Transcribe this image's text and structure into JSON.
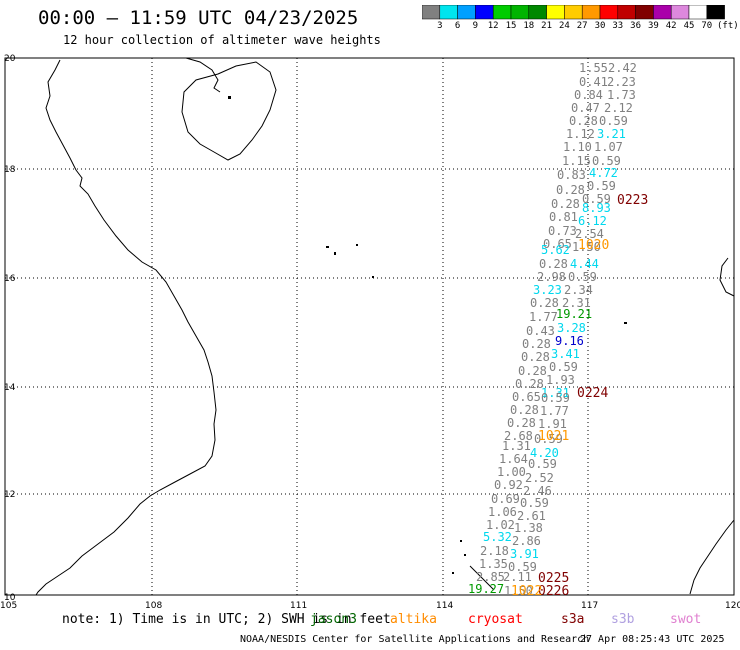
{
  "header": {
    "title": "00:00 – 11:59 UTC 04/23/2025",
    "subtitle": "12 hour collection of altimeter wave heights"
  },
  "scale": {
    "colors": [
      "#808080",
      "#00e5ee",
      "#00a0ff",
      "#0000ff",
      "#00cc00",
      "#00b400",
      "#008800",
      "#ffff00",
      "#ffcc00",
      "#ff9900",
      "#ff0000",
      "#c00000",
      "#800000",
      "#aa00aa",
      "#dd88dd",
      "#ffffff",
      "#000000"
    ],
    "labels": [
      "3",
      "6",
      "9",
      "12",
      "15",
      "18",
      "21",
      "24",
      "27",
      "30",
      "33",
      "36",
      "39",
      "42",
      "45",
      "70"
    ],
    "unit": "(ft)"
  },
  "axes": {
    "lat_labels": [
      "20",
      "18",
      "16",
      "14",
      "12",
      "10"
    ],
    "lon_labels": [
      "105",
      "108",
      "111",
      "114",
      "117",
      "120"
    ]
  },
  "track": {
    "values": [
      {
        "text": "1.55",
        "c": "gray"
      },
      {
        "text": "2.42",
        "c": "gray"
      },
      {
        "text": "0.41",
        "c": "gray"
      },
      {
        "text": "2.23",
        "c": "gray"
      },
      {
        "text": "0.84",
        "c": "gray"
      },
      {
        "text": "1.73",
        "c": "gray"
      },
      {
        "text": "0.47",
        "c": "gray"
      },
      {
        "text": "2.12",
        "c": "gray"
      },
      {
        "text": "0.28",
        "c": "gray"
      },
      {
        "text": "0.59",
        "c": "gray"
      },
      {
        "text": "1.12",
        "c": "gray"
      },
      {
        "text": "3.21",
        "c": "cyan"
      },
      {
        "text": "1.10",
        "c": "gray"
      },
      {
        "text": "1.07",
        "c": "gray"
      },
      {
        "text": "1.15",
        "c": "gray"
      },
      {
        "text": "0.59",
        "c": "gray"
      },
      {
        "text": "0.83",
        "c": "gray"
      },
      {
        "text": "4.72",
        "c": "cyan"
      },
      {
        "text": "0.28",
        "c": "gray"
      },
      {
        "text": "0.59",
        "c": "gray"
      },
      {
        "text": "0.28",
        "c": "gray"
      },
      {
        "text": "8.93",
        "c": "cyan"
      },
      {
        "text": "0.59",
        "c": "gray"
      },
      {
        "text": "0.81",
        "c": "gray"
      },
      {
        "text": "6.12",
        "c": "cyan"
      },
      {
        "text": "0.73",
        "c": "gray"
      },
      {
        "text": "2.54",
        "c": "gray"
      },
      {
        "text": "0.65",
        "c": "gray"
      },
      {
        "text": "1.50",
        "c": "gray"
      },
      {
        "text": "5.62",
        "c": "cyan"
      },
      {
        "text": "0.28",
        "c": "gray"
      },
      {
        "text": "4.44",
        "c": "cyan"
      },
      {
        "text": "2.98",
        "c": "gray"
      },
      {
        "text": "0.59",
        "c": "gray"
      },
      {
        "text": "3.23",
        "c": "cyan"
      },
      {
        "text": "2.34",
        "c": "gray"
      },
      {
        "text": "0.28",
        "c": "gray"
      },
      {
        "text": "2.31",
        "c": "gray"
      },
      {
        "text": "1.77",
        "c": "gray"
      },
      {
        "text": "19.21",
        "c": "green"
      },
      {
        "text": "0.43",
        "c": "gray"
      },
      {
        "text": "3.28",
        "c": "cyan"
      },
      {
        "text": "0.28",
        "c": "gray"
      },
      {
        "text": "9.16",
        "c": "blue"
      },
      {
        "text": "0.28",
        "c": "gray"
      },
      {
        "text": "3.41",
        "c": "cyan"
      },
      {
        "text": "0.28",
        "c": "gray"
      },
      {
        "text": "0.59",
        "c": "gray"
      },
      {
        "text": "0.28",
        "c": "gray"
      },
      {
        "text": "1.93",
        "c": "gray"
      },
      {
        "text": "1.31",
        "c": "cyan"
      },
      {
        "text": "0.65",
        "c": "gray"
      },
      {
        "text": "0.59",
        "c": "gray"
      },
      {
        "text": "0.28",
        "c": "gray"
      },
      {
        "text": "1.77",
        "c": "gray"
      },
      {
        "text": "0.28",
        "c": "gray"
      },
      {
        "text": "1.91",
        "c": "gray"
      },
      {
        "text": "2.68",
        "c": "gray"
      },
      {
        "text": "0.59",
        "c": "gray"
      },
      {
        "text": "1.31",
        "c": "gray"
      },
      {
        "text": "4.20",
        "c": "cyan"
      },
      {
        "text": "1.64",
        "c": "gray"
      },
      {
        "text": "0.59",
        "c": "gray"
      },
      {
        "text": "1.00",
        "c": "gray"
      },
      {
        "text": "2.52",
        "c": "gray"
      },
      {
        "text": "0.92",
        "c": "gray"
      },
      {
        "text": "2.46",
        "c": "gray"
      },
      {
        "text": "0.69",
        "c": "gray"
      },
      {
        "text": "0.59",
        "c": "gray"
      },
      {
        "text": "1.06",
        "c": "gray"
      },
      {
        "text": "2.61",
        "c": "gray"
      },
      {
        "text": "1.02",
        "c": "gray"
      },
      {
        "text": "1.38",
        "c": "gray"
      },
      {
        "text": "5.32",
        "c": "cyan"
      },
      {
        "text": "2.86",
        "c": "gray"
      },
      {
        "text": "2.18",
        "c": "gray"
      },
      {
        "text": "3.91",
        "c": "cyan"
      },
      {
        "text": "1.35",
        "c": "gray"
      },
      {
        "text": "0.59",
        "c": "gray"
      },
      {
        "text": "2.85",
        "c": "gray"
      },
      {
        "text": "2.11",
        "c": "gray"
      },
      {
        "text": "19.27",
        "c": "green"
      },
      {
        "text": "1.50",
        "c": "gray"
      }
    ],
    "times": [
      {
        "text": "0223",
        "c": "darkred"
      },
      {
        "text": "1020",
        "c": "orange"
      },
      {
        "text": "0224",
        "c": "darkred"
      },
      {
        "text": "1021",
        "c": "orange"
      },
      {
        "text": "0225",
        "c": "darkred"
      },
      {
        "text": "0226",
        "c": "darkred"
      },
      {
        "text": "1022",
        "c": "orange"
      }
    ]
  },
  "footer": {
    "note": "note: 1) Time is in UTC; 2) SWH is in feet",
    "satellites": [
      {
        "name": "jason3",
        "color": "#006400"
      },
      {
        "name": "altika",
        "color": "#ff8c00"
      },
      {
        "name": "cryosat",
        "color": "#ff0000"
      },
      {
        "name": "s3a",
        "color": "#800000"
      },
      {
        "name": "s3b",
        "color": "#b0a0e0"
      },
      {
        "name": "swot",
        "color": "#e080d0"
      }
    ],
    "credit": "NOAA/NESDIS Center for Satellite Applications and Research",
    "timestamp": "27 Apr 08:25:43 UTC 2025"
  }
}
